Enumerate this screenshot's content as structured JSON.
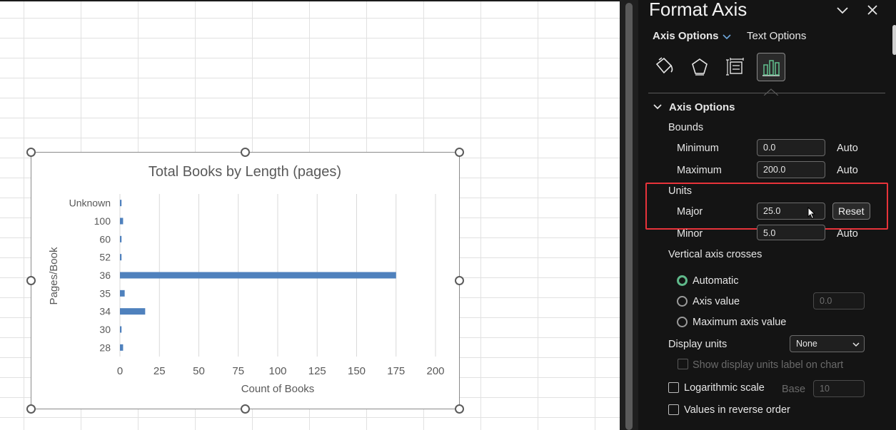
{
  "chart_data": {
    "type": "bar",
    "orientation": "horizontal",
    "title": "Total Books by Length (pages)",
    "xlabel": "Count of Books",
    "ylabel": "Pages/Book",
    "categories": [
      "Unknown",
      "100",
      "60",
      "52",
      "36",
      "35",
      "34",
      "30",
      "28"
    ],
    "values": [
      1,
      2,
      1,
      1,
      175,
      3,
      16,
      1,
      2
    ],
    "xlim": [
      0,
      200
    ],
    "xticks": [
      "0",
      "25",
      "50",
      "75",
      "100",
      "125",
      "150",
      "175",
      "200"
    ],
    "grid": true,
    "color": "#4f81bd"
  },
  "pane": {
    "title": "Format Axis",
    "tab_axis_options": "Axis Options",
    "tab_text_options": "Text Options",
    "icons": [
      "fill-line-icon",
      "effects-icon",
      "size-properties-icon",
      "axis-options-icon"
    ],
    "section_title": "Axis Options",
    "bounds_label": "Bounds",
    "minimum_label": "Minimum",
    "minimum_value": "0.0",
    "minimum_auto": "Auto",
    "maximum_label": "Maximum",
    "maximum_value": "200.0",
    "maximum_auto": "Auto",
    "units_label": "Units",
    "major_label": "Major",
    "major_value": "25.0",
    "reset_label": "Reset",
    "minor_label": "Minor",
    "minor_value": "5.0",
    "minor_auto": "Auto",
    "vcross_label": "Vertical axis crosses",
    "automatic_label": "Automatic",
    "axis_value_label": "Axis value",
    "axis_value_placeholder": "0.0",
    "max_axis_value_label": "Maximum axis value",
    "display_units_label": "Display units",
    "display_units_value": "None",
    "show_units_label": "Show display units label on chart",
    "log_label": "Logarithmic scale",
    "base_label": "Base",
    "base_value": "10",
    "reverse_label": "Values in reverse order",
    "accent": "#5fb98a",
    "highlight": "#e8333a"
  }
}
